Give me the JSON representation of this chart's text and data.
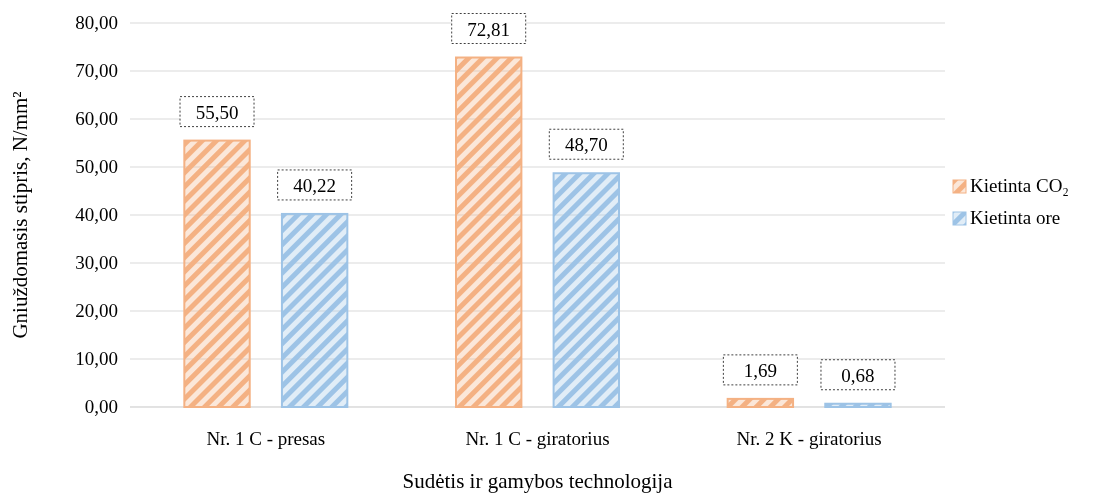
{
  "chart_data": {
    "type": "bar",
    "xlabel": "Sudėtis ir gamybos technologija",
    "ylabel": "Gniuždomasis stipris, N/mm²",
    "categories": [
      "Nr. 1 C - presas",
      "Nr. 1 C - giratorius",
      "Nr. 2 K - giratorius"
    ],
    "series": [
      {
        "name": "Kietinta CO₂",
        "color": "#f4b183",
        "values": [
          55.5,
          72.81,
          1.69
        ],
        "value_labels": [
          "55,50",
          "72,81",
          "1,69"
        ]
      },
      {
        "name": "Kietinta ore",
        "color": "#9dc3e6",
        "values": [
          40.22,
          48.7,
          0.68
        ],
        "value_labels": [
          "40,22",
          "48,70",
          "0,68"
        ]
      }
    ],
    "ylim": [
      0,
      80
    ],
    "yticks": [
      {
        "value": 0,
        "label": "0,00"
      },
      {
        "value": 10,
        "label": "10,00"
      },
      {
        "value": 20,
        "label": "20,00"
      },
      {
        "value": 30,
        "label": "30,00"
      },
      {
        "value": 40,
        "label": "40,00"
      },
      {
        "value": 50,
        "label": "50,00"
      },
      {
        "value": 60,
        "label": "60,00"
      },
      {
        "value": 70,
        "label": "70,00"
      },
      {
        "value": 80,
        "label": "80,00"
      }
    ],
    "grid": "y",
    "legend": "right"
  }
}
